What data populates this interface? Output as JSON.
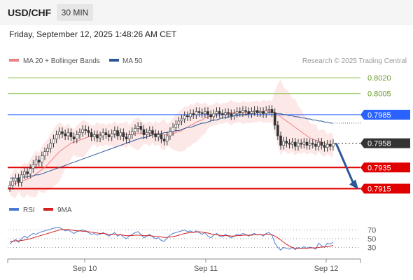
{
  "header": {
    "pair": "USD/CHF",
    "timeframe": "30 MIN"
  },
  "datetime": "Friday, September 12, 2025 1:48:26 AM CET",
  "legend": {
    "ma20": "MA 20 + Bollinger Bands",
    "ma50": "MA 50",
    "ma20_color": "#f08080",
    "ma50_color": "#2b5797",
    "rsi": "RSI",
    "ma9": "9MA",
    "rsi_color": "#4a7bd0",
    "ma9_color": "#d42020"
  },
  "credit": "Research © 2025 Trading Central",
  "chart_data": {
    "type": "candlestick",
    "price_range": [
      0.7908,
      0.803
    ],
    "x_ticks": [
      "Sep 10",
      "Sep 11",
      "Sep 12"
    ],
    "levels": [
      {
        "label": "0.8020",
        "value": 0.802,
        "kind": "resistance",
        "color": "#8bc34a"
      },
      {
        "label": "0.8005",
        "value": 0.8005,
        "kind": "resistance",
        "color": "#8bc34a"
      },
      {
        "label": "0.7985",
        "value": 0.7985,
        "kind": "pivot",
        "color": "#2962ff"
      },
      {
        "label": "0.7958",
        "value": 0.7958,
        "kind": "last",
        "color": "#333333"
      },
      {
        "label": "0.7935",
        "value": 0.7935,
        "kind": "support",
        "color": "#e00000"
      },
      {
        "label": "0.7915",
        "value": 0.7915,
        "kind": "support",
        "color": "#e00000"
      }
    ],
    "closes": [
      0.7918,
      0.7922,
      0.7925,
      0.7921,
      0.7928,
      0.7931,
      0.7929,
      0.7934,
      0.7938,
      0.7942,
      0.794,
      0.7946,
      0.795,
      0.7953,
      0.7958,
      0.7962,
      0.7966,
      0.7969,
      0.7967,
      0.7965,
      0.7968,
      0.7964,
      0.7962,
      0.7966,
      0.7968,
      0.7971,
      0.797,
      0.7968,
      0.7964,
      0.7966,
      0.7963,
      0.7965,
      0.7968,
      0.7966,
      0.7964,
      0.7967,
      0.797,
      0.7965,
      0.7968,
      0.7964,
      0.7962,
      0.7966,
      0.7969,
      0.7972,
      0.7974,
      0.7971,
      0.7966,
      0.7968,
      0.797,
      0.7967,
      0.7964,
      0.7966,
      0.7962,
      0.796,
      0.7965,
      0.7969,
      0.7973,
      0.7976,
      0.7979,
      0.7981,
      0.7984,
      0.7983,
      0.7986,
      0.7985,
      0.7988,
      0.7987,
      0.7986,
      0.7988,
      0.7985,
      0.7983,
      0.7986,
      0.7988,
      0.7986,
      0.7985,
      0.7987,
      0.7986,
      0.7984,
      0.7986,
      0.7988,
      0.7987,
      0.7989,
      0.7988,
      0.7986,
      0.7988,
      0.7989,
      0.7987,
      0.7988,
      0.7986,
      0.7989,
      0.799,
      0.7987,
      0.7975,
      0.7965,
      0.7956,
      0.796,
      0.7958,
      0.7957,
      0.7959,
      0.7955,
      0.7958,
      0.7957,
      0.7959,
      0.7956,
      0.7958,
      0.7957,
      0.7955,
      0.7959,
      0.7956,
      0.7954,
      0.7957,
      0.7955,
      0.7958
    ],
    "ma20": [
      0.7918,
      0.7919,
      0.792,
      0.7921,
      0.7922,
      0.7923,
      0.7924,
      0.7925,
      0.7927,
      0.7929,
      0.7931,
      0.7933,
      0.7935,
      0.7938,
      0.7941,
      0.7944,
      0.7947,
      0.795,
      0.7952,
      0.7954,
      0.7956,
      0.7958,
      0.7959,
      0.796,
      0.7961,
      0.7962,
      0.7963,
      0.7964,
      0.7965,
      0.7966,
      0.7966,
      0.7966,
      0.7966,
      0.7966,
      0.7966,
      0.7966,
      0.7966,
      0.7966,
      0.7966,
      0.7966,
      0.7966,
      0.7966,
      0.7966,
      0.7967,
      0.7967,
      0.7967,
      0.7967,
      0.7967,
      0.7967,
      0.7967,
      0.7967,
      0.7967,
      0.7966,
      0.7966,
      0.7966,
      0.7966,
      0.7967,
      0.7968,
      0.7969,
      0.797,
      0.7972,
      0.7973,
      0.7975,
      0.7976,
      0.7978,
      0.7979,
      0.798,
      0.7982,
      0.7983,
      0.7984,
      0.7985,
      0.7986,
      0.7986,
      0.7986,
      0.7987,
      0.7987,
      0.7987,
      0.7987,
      0.7987,
      0.7987,
      0.7987,
      0.7987,
      0.7987,
      0.7987,
      0.7988,
      0.7988,
      0.7988,
      0.7988,
      0.7988,
      0.7988,
      0.7988,
      0.7987,
      0.7985,
      0.7983,
      0.7981,
      0.7979,
      0.7977,
      0.7975,
      0.7973,
      0.7971,
      0.7969,
      0.7967,
      0.7965,
      0.7963,
      0.7962,
      0.7961,
      0.796,
      0.7959,
      0.7958,
      0.7957,
      0.7957,
      0.7956
    ],
    "ma50": [
      0.7925,
      0.7925,
      0.7925,
      0.7925,
      0.7926,
      0.7926,
      0.7926,
      0.7927,
      0.7927,
      0.7928,
      0.7928,
      0.7929,
      0.793,
      0.7931,
      0.7932,
      0.7933,
      0.7934,
      0.7935,
      0.7936,
      0.7937,
      0.7938,
      0.7939,
      0.794,
      0.7941,
      0.7942,
      0.7943,
      0.7944,
      0.7945,
      0.7946,
      0.7947,
      0.7948,
      0.7949,
      0.795,
      0.7951,
      0.7952,
      0.7953,
      0.7954,
      0.7955,
      0.7956,
      0.7957,
      0.7958,
      0.7959,
      0.796,
      0.7961,
      0.7962,
      0.7963,
      0.7963,
      0.7964,
      0.7965,
      0.7966,
      0.7966,
      0.7967,
      0.7967,
      0.7968,
      0.7968,
      0.7969,
      0.7969,
      0.797,
      0.797,
      0.7971,
      0.7972,
      0.7973,
      0.7973,
      0.7974,
      0.7975,
      0.7976,
      0.7977,
      0.7977,
      0.7978,
      0.7979,
      0.798,
      0.798,
      0.7981,
      0.7982,
      0.7982,
      0.7983,
      0.7983,
      0.7984,
      0.7984,
      0.7985,
      0.7985,
      0.7985,
      0.7986,
      0.7986,
      0.7986,
      0.7987,
      0.7987,
      0.7987,
      0.7987,
      0.7987,
      0.7987,
      0.7987,
      0.7986,
      0.7986,
      0.7985,
      0.7985,
      0.7984,
      0.7984,
      0.7983,
      0.7983,
      0.7982,
      0.7982,
      0.7981,
      0.7981,
      0.798,
      0.798,
      0.7979,
      0.7979,
      0.7978,
      0.7978,
      0.7977,
      0.7977
    ],
    "forecast": {
      "from": 0.7958,
      "to": 0.7915
    },
    "rsi": {
      "range": [
        10,
        90
      ],
      "ticks": [
        {
          "label": "70",
          "value": 70
        },
        {
          "label": "50",
          "value": 50
        },
        {
          "label": "30",
          "value": 30
        }
      ],
      "values": [
        38,
        44,
        48,
        42,
        50,
        56,
        52,
        58,
        62,
        60,
        64,
        66,
        68,
        70,
        72,
        74,
        75,
        76,
        72,
        68,
        70,
        66,
        62,
        66,
        68,
        70,
        68,
        64,
        60,
        62,
        58,
        60,
        64,
        60,
        56,
        60,
        64,
        56,
        60,
        54,
        50,
        56,
        60,
        64,
        66,
        60,
        52,
        56,
        60,
        54,
        50,
        52,
        46,
        44,
        52,
        58,
        62,
        64,
        66,
        68,
        70,
        66,
        68,
        64,
        68,
        64,
        60,
        64,
        56,
        52,
        58,
        62,
        56,
        54,
        60,
        56,
        52,
        56,
        60,
        58,
        62,
        60,
        56,
        60,
        62,
        58,
        60,
        56,
        62,
        64,
        58,
        40,
        30,
        24,
        30,
        28,
        26,
        30,
        25,
        30,
        28,
        32,
        28,
        31,
        29,
        26,
        40,
        34,
        30,
        40,
        38,
        42
      ],
      "ma9": [
        44,
        44,
        45,
        45,
        46,
        47,
        48,
        50,
        52,
        54,
        56,
        58,
        60,
        62,
        64,
        66,
        68,
        70,
        71,
        71,
        71,
        70,
        69,
        68,
        68,
        67,
        67,
        66,
        65,
        64,
        63,
        62,
        62,
        61,
        60,
        60,
        60,
        59,
        59,
        58,
        57,
        57,
        57,
        58,
        58,
        58,
        57,
        57,
        57,
        56,
        55,
        55,
        54,
        53,
        53,
        54,
        55,
        56,
        58,
        60,
        62,
        63,
        64,
        65,
        65,
        66,
        65,
        64,
        63,
        61,
        60,
        59,
        58,
        57,
        57,
        57,
        56,
        56,
        57,
        57,
        58,
        58,
        58,
        58,
        59,
        59,
        59,
        59,
        60,
        60,
        59,
        56,
        52,
        47,
        42,
        37,
        33,
        30,
        28,
        28,
        28,
        28,
        28,
        29,
        29,
        29,
        30,
        31,
        31,
        32,
        33,
        35
      ]
    }
  }
}
